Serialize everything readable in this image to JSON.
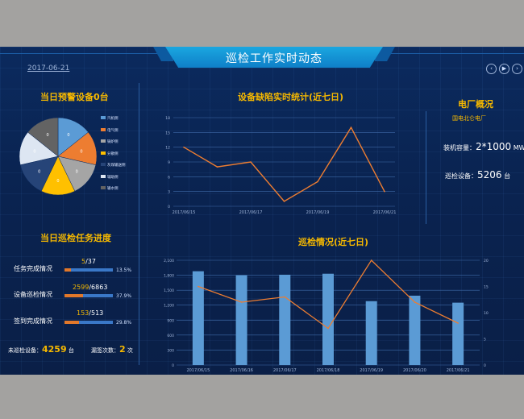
{
  "header": {
    "title": "巡检工作实时动态",
    "date": "2017-06-21"
  },
  "nav": {
    "prev": "‹",
    "play": "▶",
    "next": "›"
  },
  "warning_panel": {
    "title": "当日预警设备0台",
    "legend": [
      "汽机侧",
      "电气侧",
      "锅炉侧",
      "分散侧",
      "灰煤输送侧",
      "辅助侧",
      "输水侧"
    ],
    "colors": [
      "#5b9bd5",
      "#ed7d31",
      "#a5a5a5",
      "#ffc000",
      "#264478",
      "#dde6f2",
      "#636363"
    ],
    "pie_labels": [
      "0",
      "0",
      "0",
      "0",
      "0",
      "0",
      "0"
    ]
  },
  "defect_chart": {
    "title": "设备缺陷实时统计(近七日)",
    "chart_data": {
      "type": "line",
      "x": [
        "2017/06/15",
        "2017/06/16",
        "2017/06/17",
        "2017/06/18",
        "2017/06/19",
        "2017/06/20",
        "2017/06/21"
      ],
      "x_ticks": [
        "2017/06/15",
        "2017/06/17",
        "2017/06/19",
        "2017/06/21"
      ],
      "values": [
        12,
        8,
        9,
        1,
        5,
        16,
        3
      ],
      "yticks": [
        "0",
        "3",
        "6",
        "9",
        "12",
        "15",
        "18"
      ],
      "ylim": [
        0,
        18
      ],
      "color": "#ed7d31"
    }
  },
  "plant": {
    "title": "电厂概况",
    "subtitle": "国电北仑电厂",
    "capacity_label": "装机容量：",
    "capacity_value": "2*1000",
    "capacity_unit": "MW",
    "devices_label": "巡检设备：",
    "devices_value": "5206",
    "devices_unit": "台"
  },
  "task_panel": {
    "title": "当日巡检任务进度",
    "rows": [
      {
        "label": "任务完成情况",
        "done": "5",
        "total": "/37",
        "pct": "13.5%",
        "fraction": 0.135
      },
      {
        "label": "设备巡检情况",
        "done": "2599",
        "total": "/6863",
        "pct": "37.9%",
        "fraction": 0.379
      },
      {
        "label": "签到完成情况",
        "done": "153",
        "total": "/513",
        "pct": "29.8%",
        "fraction": 0.298
      }
    ],
    "unchecked_label": "未巡检设备：",
    "unchecked_value": "4259",
    "unchecked_unit": "台",
    "missed_label": "漏签次数：",
    "missed_value": "2",
    "missed_unit": "次"
  },
  "inspection_chart": {
    "title": "巡检情况(近七日)",
    "chart_data": {
      "type": "bar",
      "categories": [
        "2017/06/15",
        "2017/06/16",
        "2017/06/17",
        "2017/06/18",
        "2017/06/19",
        "2017/06/20",
        "2017/06/21"
      ],
      "bar_values": [
        1880,
        1800,
        1810,
        1830,
        1280,
        1390,
        1250
      ],
      "line_values": [
        15,
        12,
        13,
        7,
        20,
        12,
        8
      ],
      "left_ticks": [
        "0",
        "300",
        "600",
        "900",
        "1,200",
        "1,500",
        "1,800",
        "2,100"
      ],
      "right_ticks": [
        "0",
        "5",
        "10",
        "15",
        "20"
      ],
      "ylim_left": [
        0,
        2100
      ],
      "ylim_right": [
        0,
        20
      ],
      "bar_color": "#5b9bd5",
      "line_color": "#ed7d31"
    }
  }
}
